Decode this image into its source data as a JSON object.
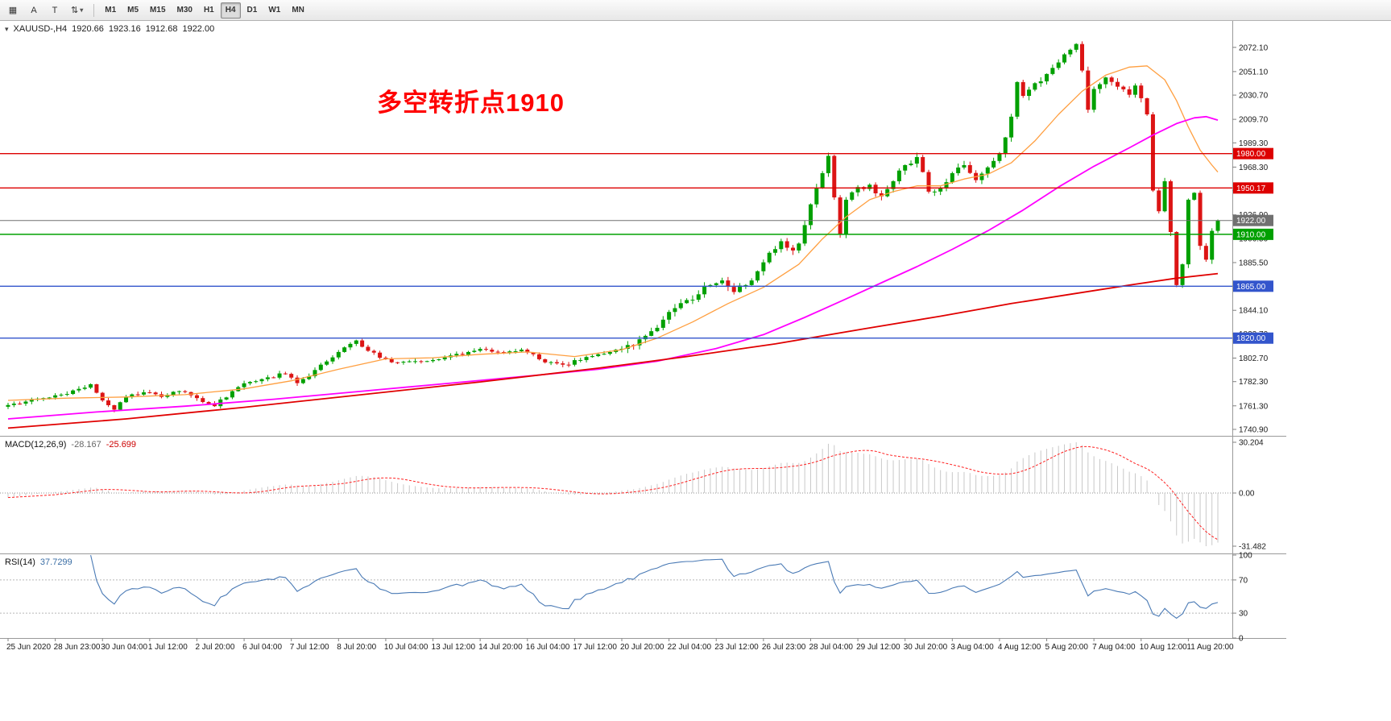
{
  "toolbar": {
    "tools": [
      {
        "name": "charts-grid",
        "glyph": "▦"
      },
      {
        "name": "cursor",
        "glyph": "A"
      },
      {
        "name": "text",
        "glyph": "T"
      },
      {
        "name": "arrange",
        "glyph": "⇅"
      }
    ],
    "dropdown_caret": "▾",
    "timeframes": [
      "M1",
      "M5",
      "M15",
      "M30",
      "H1",
      "H4",
      "D1",
      "W1",
      "MN"
    ],
    "active_timeframe": "H4"
  },
  "chart_data": {
    "type": "candlestick",
    "symbol": "XAUUSD-",
    "timeframe": "H4",
    "title": {
      "expander": "▾",
      "symbol": "XAUUSD-,H4",
      "open": "1920.66",
      "high": "1923.16",
      "low": "1912.68",
      "close": "1922.00"
    },
    "annotation": {
      "text": "多空转折点1910",
      "color": "#ff0000"
    },
    "up_color": "#00a000",
    "down_color": "#dc1414",
    "price_range": {
      "top": 2095,
      "bottom": 1736
    },
    "y_ticks": [
      2072.1,
      2051.1,
      2030.7,
      2009.7,
      1989.3,
      1968.3,
      1947.9,
      1926.9,
      1906.5,
      1885.5,
      1865.1,
      1844.1,
      1823.7,
      1802.7,
      1782.3,
      1761.3,
      1740.9
    ],
    "levels": [
      {
        "price": 1980.0,
        "label": "1980.00",
        "color": "#dd0000",
        "kind": "resistance"
      },
      {
        "price": 1950.17,
        "label": "1950.17",
        "color": "#dd0000",
        "kind": "resistance"
      },
      {
        "price": 1922.0,
        "label": "1922.00",
        "color": "#707070",
        "kind": "current-price"
      },
      {
        "price": 1910.0,
        "label": "1910.00",
        "color": "#00a000",
        "kind": "pivot"
      },
      {
        "price": 1865.0,
        "label": "1865.00",
        "color": "#3355cc",
        "kind": "support"
      },
      {
        "price": 1820.0,
        "label": "1820.00",
        "color": "#3355cc",
        "kind": "support"
      }
    ],
    "candle_count": 206,
    "close_waypoints": [
      [
        0,
        1762
      ],
      [
        3,
        1765
      ],
      [
        6,
        1768
      ],
      [
        9,
        1771
      ],
      [
        12,
        1776
      ],
      [
        14,
        1780
      ],
      [
        16,
        1766
      ],
      [
        18,
        1758
      ],
      [
        20,
        1769
      ],
      [
        23,
        1773
      ],
      [
        26,
        1769
      ],
      [
        29,
        1774
      ],
      [
        32,
        1768
      ],
      [
        35,
        1761
      ],
      [
        38,
        1774
      ],
      [
        41,
        1782
      ],
      [
        44,
        1786
      ],
      [
        47,
        1789
      ],
      [
        49,
        1781
      ],
      [
        51,
        1787
      ],
      [
        53,
        1797
      ],
      [
        56,
        1808
      ],
      [
        58,
        1815
      ],
      [
        59,
        1818
      ],
      [
        61,
        1809
      ],
      [
        63,
        1803
      ],
      [
        66,
        1799
      ],
      [
        69,
        1800
      ],
      [
        72,
        1801
      ],
      [
        75,
        1805
      ],
      [
        78,
        1808
      ],
      [
        81,
        1810
      ],
      [
        84,
        1807
      ],
      [
        87,
        1810
      ],
      [
        89,
        1806
      ],
      [
        91,
        1799
      ],
      [
        94,
        1797
      ],
      [
        97,
        1801
      ],
      [
        100,
        1806
      ],
      [
        103,
        1810
      ],
      [
        105,
        1814
      ],
      [
        107,
        1819
      ],
      [
        109,
        1826
      ],
      [
        111,
        1836
      ],
      [
        113,
        1846
      ],
      [
        115,
        1853
      ],
      [
        117,
        1858
      ],
      [
        119,
        1866
      ],
      [
        121,
        1870
      ],
      [
        123,
        1860
      ],
      [
        125,
        1866
      ],
      [
        127,
        1878
      ],
      [
        129,
        1894
      ],
      [
        131,
        1904
      ],
      [
        133,
        1896
      ],
      [
        134,
        1902
      ],
      [
        135,
        1918
      ],
      [
        136,
        1936
      ],
      [
        137,
        1950
      ],
      [
        138,
        1963
      ],
      [
        139,
        1978
      ],
      [
        140,
        1942
      ],
      [
        141,
        1910
      ],
      [
        142,
        1940
      ],
      [
        144,
        1951
      ],
      [
        146,
        1953
      ],
      [
        148,
        1943
      ],
      [
        150,
        1956
      ],
      [
        152,
        1970
      ],
      [
        154,
        1977
      ],
      [
        155,
        1964
      ],
      [
        156,
        1947
      ],
      [
        158,
        1950
      ],
      [
        160,
        1963
      ],
      [
        162,
        1970
      ],
      [
        164,
        1957
      ],
      [
        166,
        1968
      ],
      [
        168,
        1980
      ],
      [
        169,
        1994
      ],
      [
        170,
        2012
      ],
      [
        171,
        2042
      ],
      [
        172,
        2030
      ],
      [
        174,
        2041
      ],
      [
        176,
        2049
      ],
      [
        178,
        2059
      ],
      [
        180,
        2070
      ],
      [
        181,
        2075
      ],
      [
        182,
        2052
      ],
      [
        183,
        2018
      ],
      [
        184,
        2036
      ],
      [
        186,
        2046
      ],
      [
        188,
        2038
      ],
      [
        190,
        2031
      ],
      [
        191,
        2039
      ],
      [
        192,
        2028
      ],
      [
        193,
        2014
      ],
      [
        194,
        1948
      ],
      [
        195,
        1930
      ],
      [
        196,
        1956
      ],
      [
        197,
        1912
      ],
      [
        198,
        1866
      ],
      [
        199,
        1884
      ],
      [
        200,
        1940
      ],
      [
        201,
        1946
      ],
      [
        202,
        1900
      ],
      [
        203,
        1888
      ],
      [
        204,
        1913
      ],
      [
        205,
        1922
      ]
    ],
    "ma_lines": [
      {
        "name": "fast-ma",
        "color": "#ff9f40",
        "width": 1.3,
        "points": [
          [
            0,
            1766
          ],
          [
            10,
            1768
          ],
          [
            20,
            1769
          ],
          [
            30,
            1771
          ],
          [
            40,
            1776
          ],
          [
            48,
            1783
          ],
          [
            56,
            1793
          ],
          [
            64,
            1802
          ],
          [
            72,
            1803
          ],
          [
            80,
            1806
          ],
          [
            88,
            1808
          ],
          [
            96,
            1804
          ],
          [
            104,
            1810
          ],
          [
            110,
            1820
          ],
          [
            116,
            1834
          ],
          [
            122,
            1850
          ],
          [
            128,
            1864
          ],
          [
            134,
            1884
          ],
          [
            138,
            1906
          ],
          [
            142,
            1925
          ],
          [
            146,
            1940
          ],
          [
            150,
            1947
          ],
          [
            154,
            1952
          ],
          [
            158,
            1952
          ],
          [
            162,
            1958
          ],
          [
            166,
            1962
          ],
          [
            170,
            1972
          ],
          [
            174,
            1991
          ],
          [
            178,
            2014
          ],
          [
            182,
            2034
          ],
          [
            186,
            2048
          ],
          [
            190,
            2055
          ],
          [
            193,
            2056
          ],
          [
            196,
            2044
          ],
          [
            198,
            2026
          ],
          [
            200,
            2003
          ],
          [
            202,
            1983
          ],
          [
            204,
            1970
          ],
          [
            205,
            1964
          ]
        ]
      },
      {
        "name": "mid-ma",
        "color": "#ff00ff",
        "width": 1.8,
        "points": [
          [
            0,
            1750
          ],
          [
            15,
            1756
          ],
          [
            30,
            1761
          ],
          [
            45,
            1767
          ],
          [
            60,
            1774
          ],
          [
            75,
            1781
          ],
          [
            90,
            1788
          ],
          [
            100,
            1793
          ],
          [
            110,
            1800
          ],
          [
            120,
            1811
          ],
          [
            128,
            1823
          ],
          [
            135,
            1838
          ],
          [
            142,
            1854
          ],
          [
            148,
            1868
          ],
          [
            154,
            1882
          ],
          [
            160,
            1897
          ],
          [
            166,
            1913
          ],
          [
            172,
            1931
          ],
          [
            178,
            1951
          ],
          [
            184,
            1969
          ],
          [
            190,
            1985
          ],
          [
            194,
            1996
          ],
          [
            198,
            2006
          ],
          [
            201,
            2011
          ],
          [
            203,
            2012
          ],
          [
            205,
            2009
          ]
        ]
      },
      {
        "name": "slow-ma",
        "color": "#e00000",
        "width": 1.8,
        "points": [
          [
            0,
            1742
          ],
          [
            20,
            1750
          ],
          [
            40,
            1760
          ],
          [
            60,
            1771
          ],
          [
            80,
            1782
          ],
          [
            100,
            1794
          ],
          [
            115,
            1804
          ],
          [
            130,
            1815
          ],
          [
            145,
            1828
          ],
          [
            158,
            1839
          ],
          [
            170,
            1850
          ],
          [
            180,
            1858
          ],
          [
            190,
            1866
          ],
          [
            198,
            1872
          ],
          [
            205,
            1876
          ]
        ]
      }
    ]
  },
  "macd": {
    "label": "MACD(12,26,9)",
    "value_main": "-28.167",
    "value_signal": "-25.699",
    "scale_labels": [
      "30.204",
      "0.00",
      "-31.482"
    ],
    "scale_max": 30.204,
    "scale_min": -31.482,
    "histogram_color": "#c8c8c8",
    "signal_color": "#ff2020",
    "params": {
      "fast": 12,
      "slow": 26,
      "signal": 9
    }
  },
  "rsi": {
    "label": "RSI(14)",
    "value": "37.7299",
    "period": 14,
    "scale_labels": [
      "100",
      "70",
      "30",
      "0"
    ],
    "levels": [
      70,
      30
    ],
    "line_color": "#4a7ab5"
  },
  "x_axis": {
    "labels": [
      "25 Jun 2020",
      "28 Jun 23:00",
      "30 Jun 04:00",
      "1 Jul 12:00",
      "2 Jul 20:00",
      "6 Jul 04:00",
      "7 Jul 12:00",
      "8 Jul 20:00",
      "10 Jul 04:00",
      "13 Jul 12:00",
      "14 Jul 20:00",
      "16 Jul 04:00",
      "17 Jul 12:00",
      "20 Jul 20:00",
      "22 Jul 04:00",
      "23 Jul 12:00",
      "26 Jul 23:00",
      "28 Jul 04:00",
      "29 Jul 12:00",
      "30 Jul 20:00",
      "3 Aug 04:00",
      "4 Aug 12:00",
      "5 Aug 20:00",
      "7 Aug 04:00",
      "10 Aug 12:00",
      "11 Aug 20:00"
    ]
  }
}
